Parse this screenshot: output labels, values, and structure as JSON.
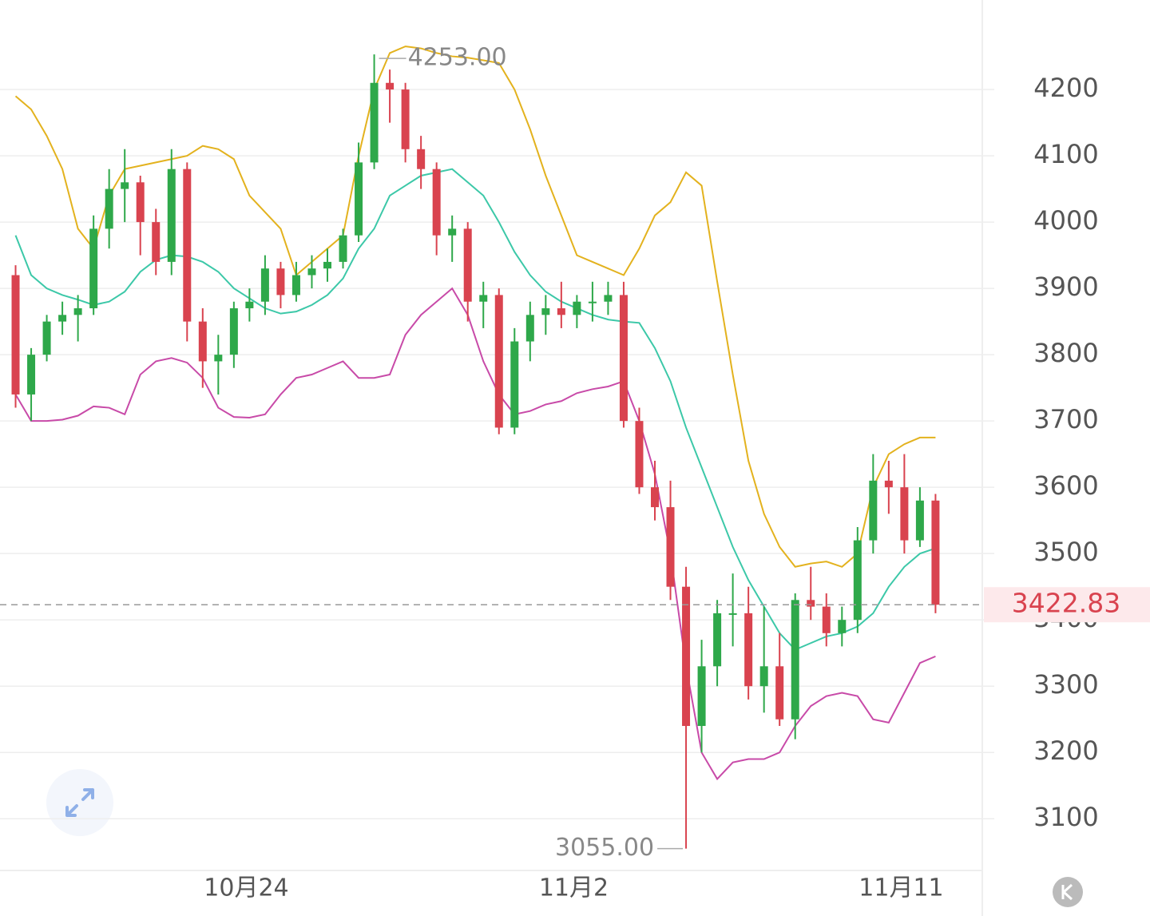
{
  "chart_data": {
    "type": "candlestick",
    "x": [
      1,
      2,
      3,
      4,
      5,
      6,
      7,
      8,
      9,
      10,
      11,
      12,
      13,
      14,
      15,
      16,
      17,
      18,
      19,
      20,
      21,
      22,
      23,
      24,
      25,
      26,
      27,
      28,
      29,
      30,
      31,
      32,
      33,
      34,
      35,
      36,
      37,
      38,
      39,
      40,
      41,
      42,
      43,
      44,
      45,
      46,
      47,
      48,
      49,
      50,
      51,
      52,
      53,
      54,
      55,
      56,
      57,
      58,
      59,
      60
    ],
    "open": [
      3920,
      3740,
      3800,
      3850,
      3860,
      3870,
      3990,
      4050,
      4060,
      4000,
      3940,
      4080,
      3850,
      3790,
      3800,
      3870,
      3880,
      3930,
      3890,
      3920,
      3930,
      3940,
      3980,
      4090,
      4210,
      4200,
      4110,
      4080,
      3980,
      3990,
      3880,
      3890,
      3690,
      3820,
      3860,
      3870,
      3860,
      3880,
      3880,
      3890,
      3700,
      3600,
      3570,
      3450,
      3240,
      3330,
      3410,
      3410,
      3300,
      3330,
      3250,
      3430,
      3420,
      3380,
      3400,
      3520,
      3610,
      3600,
      3520,
      3580
    ],
    "high": [
      3935,
      3810,
      3860,
      3880,
      3890,
      4010,
      4080,
      4110,
      4070,
      4020,
      4110,
      4090,
      3870,
      3830,
      3880,
      3900,
      3950,
      3940,
      3940,
      3950,
      3960,
      3990,
      4120,
      4253,
      4230,
      4210,
      4130,
      4090,
      4010,
      4000,
      3910,
      3900,
      3840,
      3880,
      3890,
      3910,
      3890,
      3910,
      3910,
      3910,
      3720,
      3640,
      3610,
      3480,
      3370,
      3430,
      3470,
      3450,
      3420,
      3380,
      3440,
      3480,
      3440,
      3420,
      3540,
      3650,
      3640,
      3650,
      3600,
      3590
    ],
    "low": [
      3720,
      3700,
      3790,
      3830,
      3820,
      3860,
      3960,
      4000,
      3950,
      3920,
      3920,
      3820,
      3750,
      3740,
      3780,
      3850,
      3860,
      3870,
      3880,
      3900,
      3910,
      3930,
      3970,
      4080,
      4150,
      4090,
      4050,
      3950,
      3940,
      3850,
      3840,
      3680,
      3680,
      3790,
      3830,
      3840,
      3840,
      3850,
      3860,
      3690,
      3590,
      3550,
      3430,
      3055,
      3200,
      3300,
      3360,
      3280,
      3260,
      3240,
      3220,
      3400,
      3360,
      3360,
      3380,
      3500,
      3560,
      3500,
      3510,
      3410
    ],
    "close": [
      3740,
      3800,
      3850,
      3860,
      3870,
      3990,
      4050,
      4060,
      4000,
      3940,
      4080,
      3850,
      3790,
      3800,
      3870,
      3880,
      3930,
      3890,
      3920,
      3930,
      3940,
      3980,
      4090,
      4210,
      4200,
      4110,
      4080,
      3980,
      3990,
      3880,
      3890,
      3690,
      3820,
      3860,
      3870,
      3860,
      3880,
      3880,
      3890,
      3700,
      3600,
      3570,
      3450,
      3240,
      3330,
      3410,
      3410,
      3300,
      3330,
      3250,
      3430,
      3420,
      3380,
      3400,
      3520,
      3610,
      3600,
      3520,
      3580,
      3422.83
    ],
    "up_color": "#2ea84a",
    "down_color": "#d9434f",
    "series": [
      {
        "color": "#e3b21e",
        "values": [
          4190,
          4170,
          4130,
          4080,
          3990,
          3960,
          4040,
          4080,
          4085,
          4090,
          4095,
          4100,
          4115,
          4110,
          4095,
          4040,
          4015,
          3990,
          3920,
          3940,
          3960,
          3980,
          4100,
          4200,
          4255,
          4265,
          4262,
          4255,
          4250,
          4248,
          4244,
          4240,
          4200,
          4140,
          4070,
          4010,
          3950,
          3940,
          3930,
          3920,
          3960,
          4010,
          4030,
          4075,
          4055,
          3910,
          3770,
          3640,
          3560,
          3510,
          3480,
          3485,
          3488,
          3480,
          3500,
          3600,
          3650,
          3665,
          3675,
          3675
        ]
      },
      {
        "color": "#3cc8a8",
        "values": [
          3980,
          3920,
          3900,
          3890,
          3883,
          3875,
          3880,
          3895,
          3925,
          3943,
          3950,
          3948,
          3940,
          3925,
          3900,
          3885,
          3870,
          3862,
          3865,
          3875,
          3890,
          3915,
          3960,
          3990,
          4040,
          4055,
          4070,
          4075,
          4080,
          4060,
          4040,
          4000,
          3955,
          3920,
          3895,
          3880,
          3870,
          3860,
          3853,
          3850,
          3848,
          3810,
          3760,
          3690,
          3630,
          3570,
          3510,
          3460,
          3420,
          3380,
          3355,
          3365,
          3375,
          3380,
          3390,
          3410,
          3450,
          3480,
          3500,
          3508
        ]
      },
      {
        "color": "#c84aa8",
        "values": [
          3740,
          3700,
          3700,
          3702,
          3708,
          3722,
          3720,
          3710,
          3770,
          3790,
          3795,
          3788,
          3765,
          3720,
          3706,
          3705,
          3710,
          3740,
          3765,
          3770,
          3780,
          3790,
          3765,
          3765,
          3770,
          3830,
          3860,
          3880,
          3900,
          3860,
          3790,
          3740,
          3710,
          3715,
          3725,
          3730,
          3742,
          3748,
          3752,
          3760,
          3700,
          3620,
          3500,
          3330,
          3200,
          3160,
          3185,
          3190,
          3190,
          3200,
          3240,
          3270,
          3285,
          3290,
          3285,
          3250,
          3245,
          3290,
          3335,
          3345
        ]
      }
    ],
    "xlim": [
      0,
      63
    ],
    "xticks": [
      {
        "value": 15.8,
        "label": "10月24"
      },
      {
        "value": 36.8,
        "label": "11月2"
      },
      {
        "value": 57.8,
        "label": "11月11"
      }
    ],
    "ylim": [
      3022,
      4335
    ],
    "yticks": [
      3100,
      3200,
      3300,
      3400,
      3500,
      3600,
      3700,
      3800,
      3900,
      4000,
      4100,
      4200
    ],
    "grid": true,
    "last_price": 3422.83,
    "high_label": {
      "value": 4253,
      "label": "4253.00"
    },
    "low_label": {
      "value": 3055,
      "label": "3055.00"
    }
  }
}
